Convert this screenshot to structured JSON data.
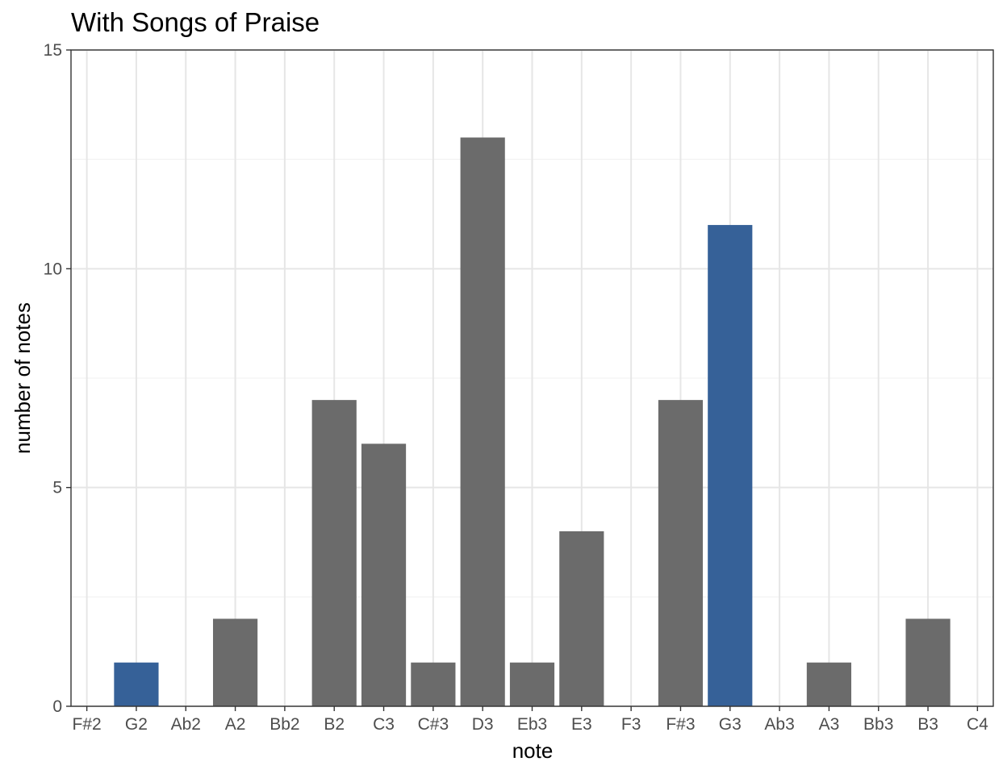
{
  "chart_data": {
    "type": "bar",
    "title": "With Songs of Praise",
    "xlabel": "note",
    "ylabel": "number of notes",
    "ylim": [
      0,
      15
    ],
    "yticks": [
      0,
      5,
      10,
      15
    ],
    "grid": true,
    "categories": [
      "F#2",
      "G2",
      "Ab2",
      "A2",
      "Bb2",
      "B2",
      "C3",
      "C#3",
      "D3",
      "Eb3",
      "E3",
      "F3",
      "F#3",
      "G3",
      "Ab3",
      "A3",
      "Bb3",
      "B3",
      "C4"
    ],
    "values": [
      0,
      1,
      0,
      2,
      0,
      7,
      6,
      1,
      13,
      1,
      4,
      0,
      7,
      11,
      0,
      1,
      0,
      2,
      0
    ],
    "highlight": [
      false,
      true,
      false,
      false,
      false,
      false,
      false,
      false,
      false,
      false,
      false,
      false,
      false,
      true,
      false,
      false,
      false,
      false,
      false
    ],
    "colors": {
      "default": "#6b6b6b",
      "highlight": "#366198"
    }
  }
}
